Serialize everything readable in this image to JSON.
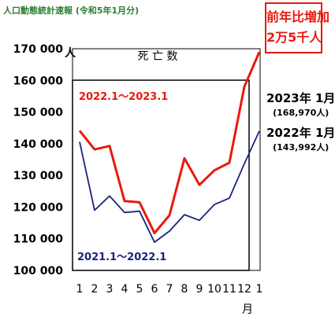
{
  "header": {
    "title": "人口動態統計速報 (令和5年1月分)"
  },
  "yoy_box": {
    "line1": "前年比増加",
    "line2": "2万5千人"
  },
  "annotations": {
    "latest_2023": {
      "label": "2023年 1月",
      "value": "(168,970人)"
    },
    "latest_2022": {
      "label": "2022年 1月",
      "value": "(143,992人)"
    }
  },
  "colors": {
    "series_current": "#e8190c",
    "series_previous": "#1a237e",
    "header": "#2e7d32",
    "box_border": "#e8190c"
  },
  "chart_data": {
    "type": "line",
    "title": "死 亡 数",
    "x_categories": [
      "1",
      "2",
      "3",
      "4",
      "5",
      "6",
      "7",
      "8",
      "9",
      "10",
      "11",
      "12",
      "1"
    ],
    "x_unit": "月",
    "y_unit": "人",
    "ylim": [
      100000,
      170000
    ],
    "yticks": [
      100000,
      110000,
      120000,
      130000,
      140000,
      150000,
      160000,
      170000
    ],
    "ytick_labels": [
      "100 000",
      "110 000",
      "120 000",
      "130 000",
      "140 000",
      "150 000",
      "160 000",
      "170 000"
    ],
    "grid": false,
    "series": [
      {
        "name": "2022.1～2023.1",
        "color": "#e8190c",
        "values": [
          144100,
          138200,
          139300,
          121900,
          121500,
          111800,
          117400,
          135400,
          127000,
          131600,
          134000,
          158000,
          168970
        ]
      },
      {
        "name": "2021.1～2022.1",
        "color": "#1a237e",
        "values": [
          140600,
          119000,
          123500,
          118300,
          118700,
          108900,
          112400,
          117600,
          115800,
          120800,
          122800,
          133700,
          143992
        ]
      }
    ]
  }
}
